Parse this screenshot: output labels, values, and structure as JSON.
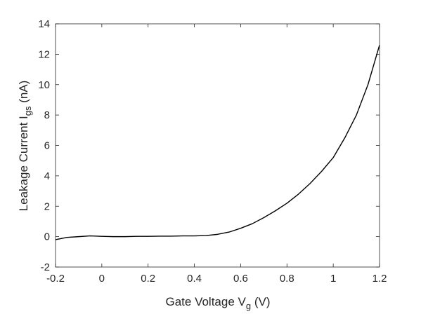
{
  "chart_data": {
    "type": "line",
    "title": "",
    "xlabel": {
      "main": "Gate Voltage V",
      "sub": "g",
      "unit": " (V)"
    },
    "ylabel": {
      "main": "Leakage Current  I",
      "sub": "gs",
      "unit": " (nA)"
    },
    "xlim": [
      -0.2,
      1.2
    ],
    "ylim": [
      -2,
      14
    ],
    "xticks": [
      -0.2,
      0,
      0.2,
      0.4,
      0.6,
      0.8,
      1,
      1.2
    ],
    "xtick_labels": [
      "-0.2",
      "0",
      "0.2",
      "0.4",
      "0.6",
      "0.8",
      "1",
      "1.2"
    ],
    "yticks": [
      -2,
      0,
      2,
      4,
      6,
      8,
      10,
      12,
      14
    ],
    "ytick_labels": [
      "-2",
      "0",
      "2",
      "4",
      "6",
      "8",
      "10",
      "12",
      "14"
    ],
    "grid": false,
    "box": true,
    "series": [
      {
        "name": "",
        "color": "#000000",
        "x": [
          -0.2,
          -0.15,
          -0.1,
          -0.05,
          0,
          0.05,
          0.1,
          0.15,
          0.2,
          0.25,
          0.3,
          0.35,
          0.4,
          0.45,
          0.5,
          0.55,
          0.6,
          0.65,
          0.7,
          0.75,
          0.8,
          0.85,
          0.9,
          0.95,
          1.0,
          1.05,
          1.1,
          1.15,
          1.2
        ],
        "y": [
          -0.2,
          -0.05,
          0.0,
          0.05,
          0.02,
          0.0,
          0.0,
          0.02,
          0.02,
          0.03,
          0.03,
          0.05,
          0.05,
          0.07,
          0.15,
          0.3,
          0.55,
          0.85,
          1.25,
          1.7,
          2.2,
          2.8,
          3.5,
          4.3,
          5.2,
          6.5,
          8.0,
          10.0,
          12.6
        ]
      }
    ]
  }
}
